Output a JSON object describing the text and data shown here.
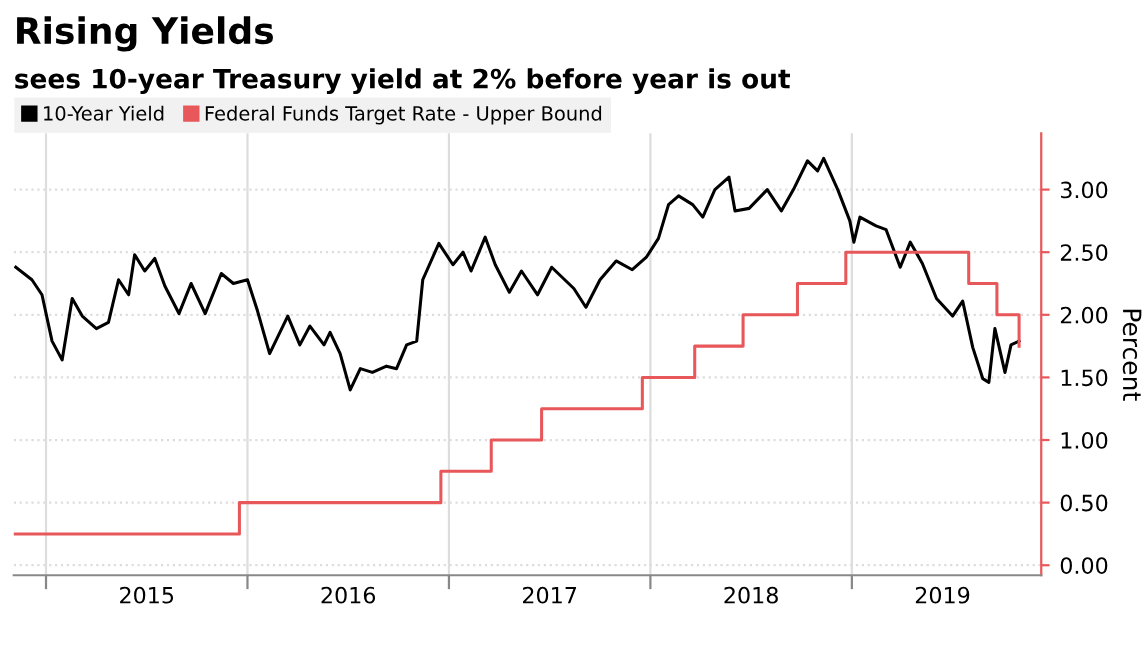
{
  "chart_data": {
    "type": "line",
    "title": "Rising Yields",
    "subtitle": "sees 10-year Treasury yield at 2% before year is out",
    "ylabel": "Percent",
    "xlim": [
      2014.84,
      2019.94
    ],
    "ylim": [
      -0.08,
      3.45
    ],
    "xticks": [
      {
        "value": 2015,
        "label": null
      },
      {
        "value": 2016,
        "label": null
      },
      {
        "value": 2017,
        "label": null
      },
      {
        "value": 2018,
        "label": null
      },
      {
        "value": 2019,
        "label": null
      },
      {
        "value": 2015.5,
        "label": "2015"
      },
      {
        "value": 2016.5,
        "label": "2016"
      },
      {
        "value": 2017.5,
        "label": "2017"
      },
      {
        "value": 2018.5,
        "label": "2018"
      },
      {
        "value": 2019.45,
        "label": "2019"
      }
    ],
    "yticks": [
      {
        "value": 0,
        "label": "0.00"
      },
      {
        "value": 0.5,
        "label": "0.50"
      },
      {
        "value": 1,
        "label": "1.00"
      },
      {
        "value": 1.5,
        "label": "1.50"
      },
      {
        "value": 2,
        "label": "2.00"
      },
      {
        "value": 2.5,
        "label": "2.50"
      },
      {
        "value": 3,
        "label": "3.00"
      }
    ],
    "grid": true,
    "legend": "top left",
    "series": [
      {
        "name": "10-Year Yield",
        "color": "#000000",
        "x": [
          2014.85,
          2014.93,
          2014.98,
          2015.03,
          2015.08,
          2015.13,
          2015.18,
          2015.25,
          2015.31,
          2015.36,
          2015.41,
          2015.44,
          2015.49,
          2015.54,
          2015.59,
          2015.66,
          2015.72,
          2015.79,
          2015.87,
          2015.93,
          2016.0,
          2016.05,
          2016.11,
          2016.2,
          2016.26,
          2016.31,
          2016.38,
          2016.41,
          2016.46,
          2016.51,
          2016.56,
          2016.62,
          2016.69,
          2016.74,
          2016.79,
          2016.84,
          2016.87,
          2016.95,
          2017.02,
          2017.07,
          2017.11,
          2017.18,
          2017.23,
          2017.3,
          2017.36,
          2017.44,
          2017.51,
          2017.62,
          2017.68,
          2017.75,
          2017.83,
          2017.91,
          2017.98,
          2018.04,
          2018.09,
          2018.14,
          2018.21,
          2018.26,
          2018.32,
          2018.39,
          2018.42,
          2018.49,
          2018.58,
          2018.65,
          2018.71,
          2018.78,
          2018.83,
          2018.86,
          2018.93,
          2018.99,
          2019.01,
          2019.04,
          2019.12,
          2019.17,
          2019.24,
          2019.29,
          2019.35,
          2019.42,
          2019.5,
          2019.55,
          2019.6,
          2019.65,
          2019.68,
          2019.71,
          2019.76,
          2019.79,
          2019.83
        ],
        "values": [
          2.38,
          2.28,
          2.16,
          1.79,
          1.64,
          2.13,
          1.99,
          1.89,
          1.94,
          2.28,
          2.16,
          2.48,
          2.35,
          2.45,
          2.23,
          2.01,
          2.25,
          2.01,
          2.33,
          2.25,
          2.28,
          2.03,
          1.69,
          1.99,
          1.76,
          1.91,
          1.76,
          1.86,
          1.69,
          1.4,
          1.57,
          1.54,
          1.59,
          1.57,
          1.76,
          1.79,
          2.28,
          2.57,
          2.4,
          2.5,
          2.35,
          2.62,
          2.4,
          2.18,
          2.35,
          2.16,
          2.38,
          2.21,
          2.06,
          2.28,
          2.43,
          2.36,
          2.46,
          2.61,
          2.88,
          2.95,
          2.88,
          2.78,
          3.0,
          3.1,
          2.83,
          2.85,
          3.0,
          2.83,
          3.0,
          3.23,
          3.15,
          3.25,
          3.0,
          2.75,
          2.58,
          2.78,
          2.71,
          2.68,
          2.38,
          2.58,
          2.41,
          2.13,
          1.99,
          2.11,
          1.74,
          1.49,
          1.46,
          1.89,
          1.54,
          1.76,
          1.79
        ]
      },
      {
        "name": "Federal Funds Target Rate - Upper Bound",
        "color": "#e8585a",
        "type": "step",
        "x": [
          2014.84,
          2015.96,
          2016.96,
          2017.21,
          2017.46,
          2017.96,
          2018.22,
          2018.46,
          2018.73,
          2018.97,
          2019.58,
          2019.72,
          2019.83
        ],
        "values": [
          0.25,
          0.5,
          0.75,
          1.0,
          1.25,
          1.5,
          1.75,
          2.0,
          2.25,
          2.5,
          2.25,
          2.0,
          1.75
        ]
      }
    ]
  }
}
